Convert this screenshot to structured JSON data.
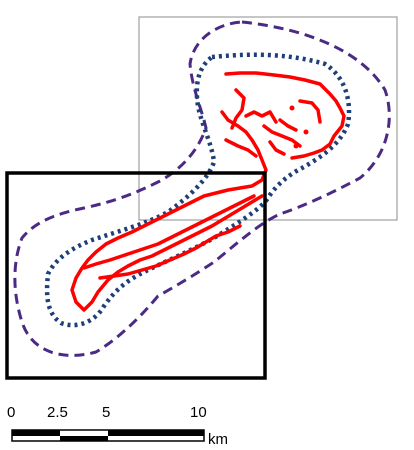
{
  "map": {
    "colors": {
      "route": "#ff0000",
      "inner_buffer": "#1f3f78",
      "outer_buffer": "#4b2a85",
      "frame": "#000000",
      "inset_frame": "#8c8c8c"
    },
    "legend": {
      "scale_bar": {
        "ticks": [
          "0",
          "2.5",
          "5",
          "10"
        ],
        "unit": "km"
      }
    }
  }
}
